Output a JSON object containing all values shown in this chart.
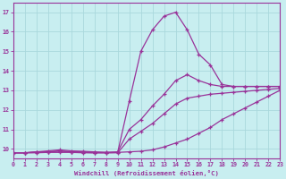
{
  "xlabel": "Windchill (Refroidissement éolien,°C)",
  "bg_color": "#c8eef0",
  "line_color": "#993399",
  "grid_color": "#aad8dc",
  "xlim": [
    0,
    23
  ],
  "ylim": [
    9.5,
    17.5
  ],
  "xticks": [
    0,
    1,
    2,
    3,
    4,
    5,
    6,
    7,
    8,
    9,
    10,
    11,
    12,
    13,
    14,
    15,
    16,
    17,
    18,
    19,
    20,
    21,
    22,
    23
  ],
  "yticks": [
    10,
    11,
    12,
    13,
    14,
    15,
    16,
    17
  ],
  "curves": [
    {
      "x": [
        0,
        1,
        2,
        3,
        4,
        5,
        6,
        7,
        8,
        9,
        10,
        11,
        12,
        13,
        14,
        15,
        16,
        17,
        18,
        19,
        20,
        21,
        22,
        23
      ],
      "y": [
        9.8,
        9.8,
        9.85,
        9.85,
        9.9,
        9.85,
        9.85,
        9.82,
        9.82,
        9.82,
        12.45,
        15.0,
        16.1,
        16.8,
        17.0,
        16.1,
        14.85,
        14.3,
        13.3,
        13.2,
        13.2,
        13.2,
        13.2,
        13.2
      ],
      "markers": true
    },
    {
      "x": [
        0,
        1,
        2,
        3,
        4,
        5,
        6,
        7,
        8,
        9,
        10,
        11,
        12,
        13,
        14,
        15,
        16,
        17,
        18,
        19,
        20,
        21,
        22,
        23
      ],
      "y": [
        9.8,
        9.8,
        9.85,
        9.9,
        9.95,
        9.9,
        9.88,
        9.85,
        9.82,
        9.85,
        11.0,
        11.5,
        12.2,
        12.8,
        13.5,
        13.8,
        13.5,
        13.3,
        13.2,
        13.2,
        13.2,
        13.2,
        13.2,
        13.2
      ],
      "markers": true
    },
    {
      "x": [
        0,
        1,
        2,
        3,
        4,
        5,
        6,
        7,
        8,
        9,
        10,
        11,
        12,
        13,
        14,
        15,
        16,
        17,
        18,
        19,
        20,
        21,
        22,
        23
      ],
      "y": [
        9.8,
        9.8,
        9.82,
        9.85,
        9.88,
        9.85,
        9.82,
        9.8,
        9.8,
        9.8,
        10.5,
        10.9,
        11.3,
        11.8,
        12.3,
        12.6,
        12.7,
        12.8,
        12.85,
        12.9,
        12.95,
        13.0,
        13.05,
        13.1
      ],
      "markers": true
    },
    {
      "x": [
        0,
        1,
        2,
        3,
        4,
        5,
        6,
        7,
        8,
        9,
        10,
        11,
        12,
        13,
        14,
        15,
        16,
        17,
        18,
        19,
        20,
        21,
        22,
        23
      ],
      "y": [
        9.8,
        9.8,
        9.8,
        9.82,
        9.82,
        9.82,
        9.8,
        9.8,
        9.8,
        9.82,
        9.85,
        9.88,
        9.95,
        10.1,
        10.3,
        10.5,
        10.8,
        11.1,
        11.5,
        11.8,
        12.1,
        12.4,
        12.7,
        13.0
      ],
      "markers": true
    }
  ]
}
